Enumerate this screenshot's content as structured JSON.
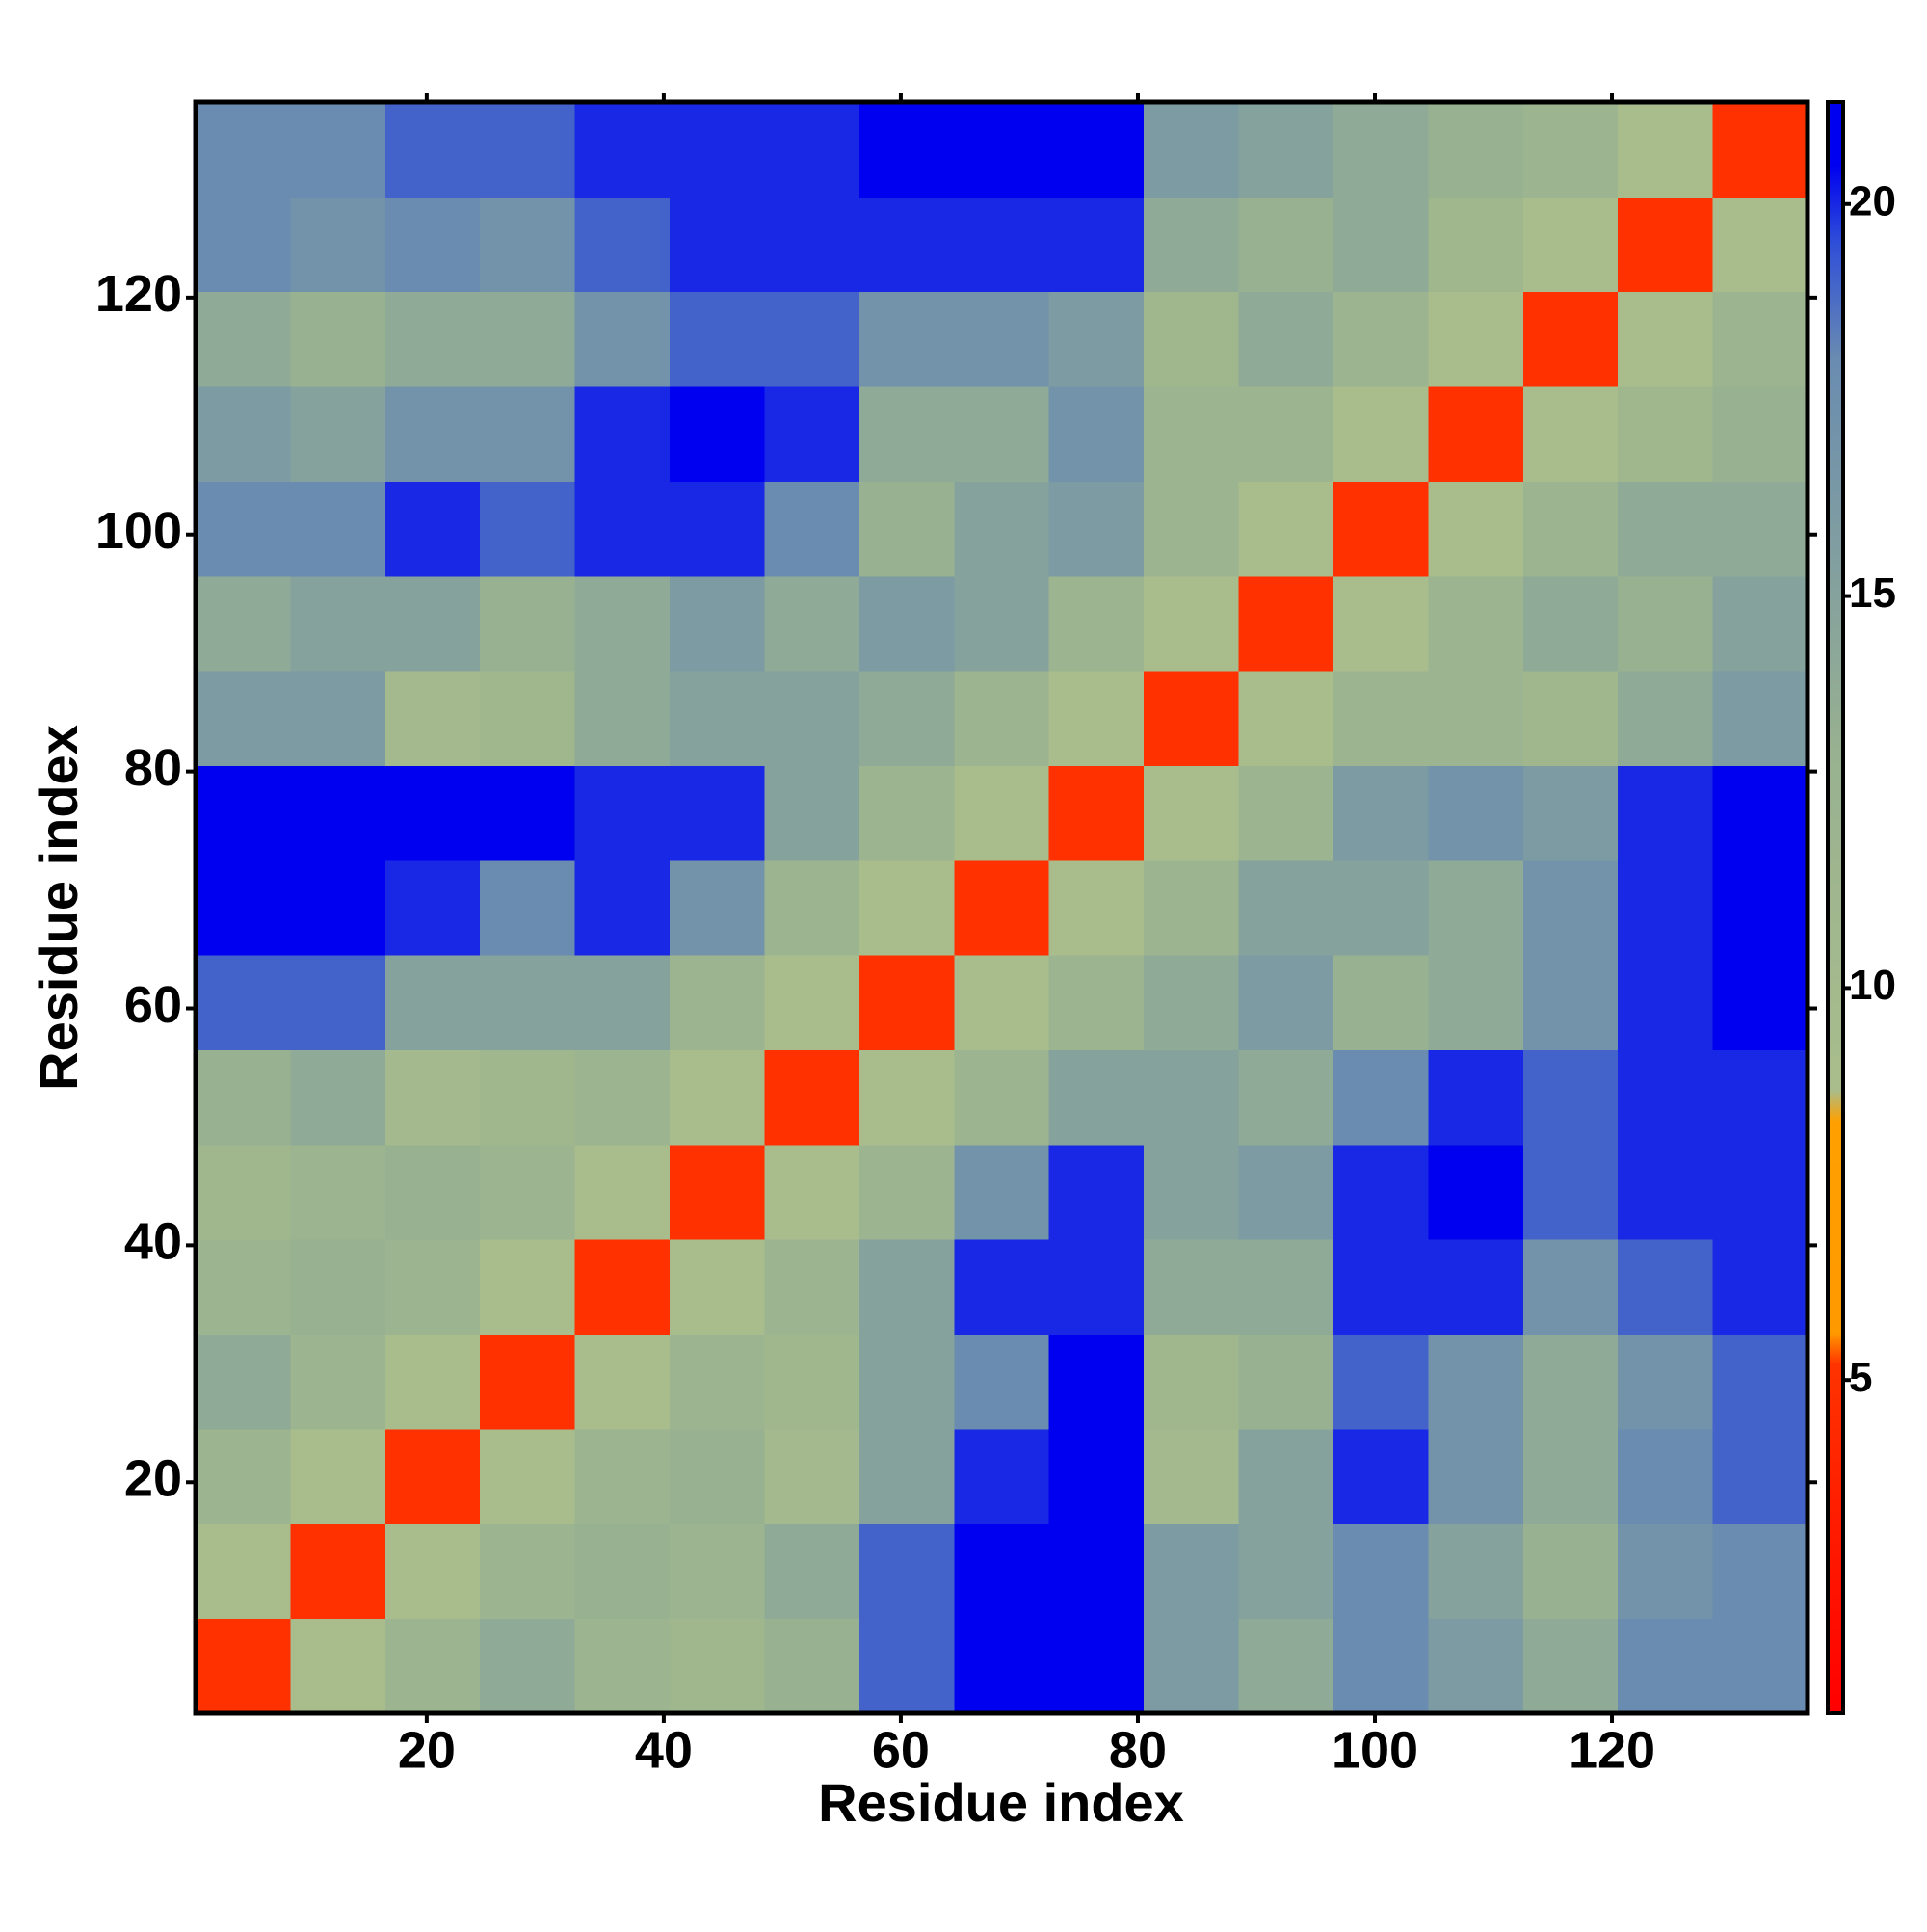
{
  "chart_data": {
    "type": "heatmap",
    "xlabel": "Residue index",
    "ylabel": "Residue index",
    "x": [
      4.5,
      12.5,
      20.5,
      28.5,
      36.5,
      44.5,
      52.5,
      60.5,
      68.5,
      76.5,
      84.5,
      92.5,
      100.5,
      108.5,
      116.5,
      124.5,
      132.5
    ],
    "y": [
      4.5,
      12.5,
      20.5,
      28.5,
      36.5,
      44.5,
      52.5,
      60.5,
      68.5,
      76.5,
      84.5,
      92.5,
      100.5,
      108.5,
      116.5,
      124.5,
      132.5
    ],
    "values": [
      [
        5,
        9,
        12,
        14,
        12,
        11,
        13,
        19,
        21,
        21,
        16,
        14,
        18,
        16,
        14,
        18,
        18
      ],
      [
        9,
        5,
        9,
        12,
        13,
        12,
        14,
        19,
        21,
        21,
        16,
        15,
        18,
        15,
        13,
        17,
        18
      ],
      [
        12,
        9,
        5,
        9,
        12,
        13,
        10,
        15,
        20,
        21,
        10,
        15,
        20,
        17,
        14,
        18,
        19
      ],
      [
        14,
        12,
        9,
        5,
        9,
        12,
        11,
        15,
        18,
        21,
        11,
        13,
        19,
        17,
        14,
        17,
        19
      ],
      [
        12,
        13,
        12,
        9,
        5,
        9,
        12,
        15,
        20,
        20,
        14,
        14,
        20,
        20,
        17,
        19,
        20
      ],
      [
        11,
        12,
        13,
        12,
        9,
        5,
        9,
        12,
        17,
        20,
        15,
        16,
        20,
        21,
        19,
        20,
        20
      ],
      [
        13,
        14,
        10,
        11,
        12,
        9,
        5,
        9,
        12,
        15,
        15,
        14,
        18,
        20,
        19,
        20,
        20
      ],
      [
        19,
        19,
        15,
        15,
        15,
        12,
        9,
        5,
        9,
        12,
        14,
        16,
        13,
        14,
        17,
        20,
        21
      ],
      [
        21,
        21,
        20,
        18,
        20,
        17,
        12,
        9,
        5,
        9,
        12,
        15,
        15,
        14,
        17,
        20,
        21
      ],
      [
        21,
        21,
        21,
        21,
        20,
        20,
        15,
        12,
        9,
        5,
        9,
        12,
        16,
        17,
        16,
        20,
        21
      ],
      [
        16,
        16,
        10,
        11,
        14,
        15,
        15,
        14,
        12,
        9,
        5,
        9,
        12,
        12,
        11,
        14,
        16
      ],
      [
        14,
        15,
        15,
        13,
        14,
        16,
        14,
        16,
        15,
        12,
        9,
        5,
        9,
        12,
        14,
        13,
        15
      ],
      [
        18,
        18,
        20,
        19,
        20,
        20,
        18,
        13,
        15,
        16,
        12,
        9,
        5,
        9,
        12,
        14,
        14
      ],
      [
        16,
        15,
        17,
        17,
        20,
        21,
        20,
        14,
        14,
        17,
        12,
        12,
        9,
        5,
        9,
        11,
        13
      ],
      [
        14,
        13,
        14,
        14,
        17,
        19,
        19,
        17,
        17,
        16,
        11,
        14,
        12,
        9,
        5,
        9,
        12
      ],
      [
        18,
        17,
        18,
        17,
        19,
        20,
        20,
        20,
        20,
        20,
        14,
        13,
        14,
        11,
        9,
        5,
        9
      ],
      [
        18,
        18,
        19,
        19,
        20,
        20,
        20,
        21,
        21,
        21,
        16,
        15,
        14,
        13,
        12,
        9,
        5
      ]
    ],
    "xlim": [
      0.5,
      136.5
    ],
    "ylim": [
      0.5,
      136.5
    ],
    "xticks": [
      20,
      40,
      60,
      80,
      100,
      120
    ],
    "yticks": [
      20,
      40,
      60,
      80,
      100,
      120
    ],
    "clim": [
      0.75,
      21.3
    ],
    "cticks": [
      5,
      10,
      15,
      20
    ],
    "colormap": [
      {
        "value": 0.75,
        "color": "#ff0000"
      },
      {
        "value": 5.2,
        "color": "#ff3300"
      },
      {
        "value": 5.6,
        "color": "#ff9900"
      },
      {
        "value": 8.3,
        "color": "#ffa000"
      },
      {
        "value": 8.7,
        "color": "#a9bd8c"
      },
      {
        "value": 13,
        "color": "#98b190"
      },
      {
        "value": 18,
        "color": "#6a8cb0"
      },
      {
        "value": 19.5,
        "color": "#2f4fd8"
      },
      {
        "value": 20.5,
        "color": "#0000f0"
      },
      {
        "value": 21.3,
        "color": "#0000f0"
      }
    ]
  }
}
